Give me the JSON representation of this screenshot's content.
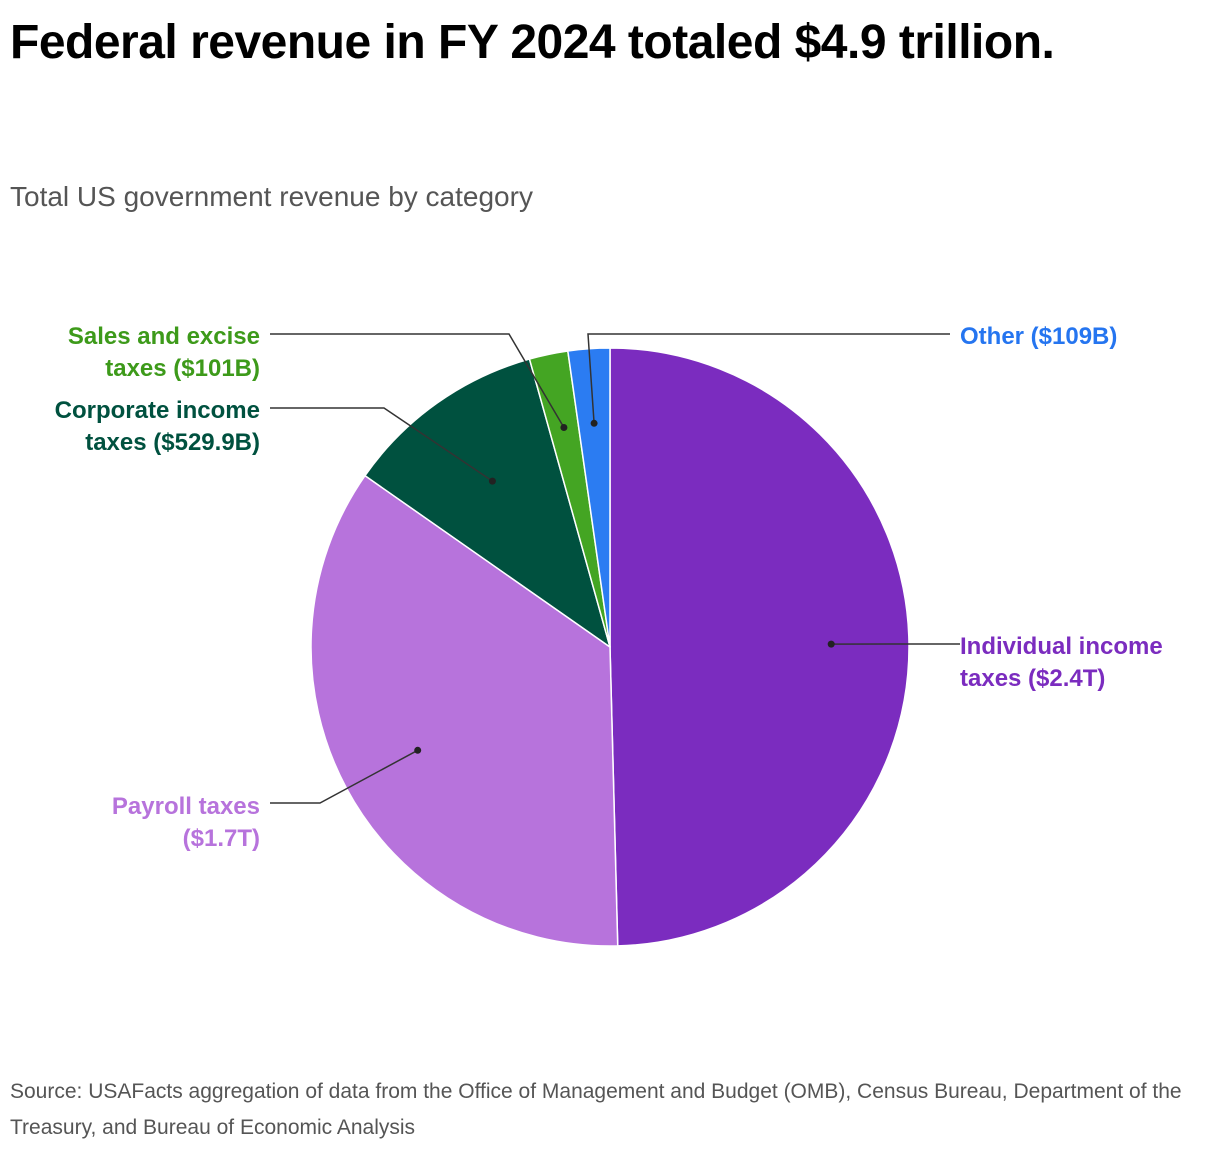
{
  "header": {
    "title": "Federal revenue in FY 2024 totaled $4.9 trillion.",
    "subtitle": "Total US government revenue by category"
  },
  "footer": {
    "source": "Source: USAFacts aggregation of data from the Office of Management and Budget (OMB), Census Bureau, Department of the Treasury, and Bureau of Economic Analysis"
  },
  "chart_data": {
    "type": "pie",
    "title": "Federal revenue in FY 2024 totaled $4.9 trillion.",
    "subtitle": "Total US government revenue by category",
    "unit": "USD",
    "start_angle": "12 o'clock",
    "direction": "clockwise",
    "legend": "none (direct labels with leader lines)",
    "slices": [
      {
        "label_lines": [
          "Individual income",
          "taxes ($2.4T)"
        ],
        "value": 2400,
        "value_label": "$2.4T",
        "color": "#7b2cbf"
      },
      {
        "label_lines": [
          "Payroll taxes",
          "($1.7T)"
        ],
        "value": 1700,
        "value_label": "$1.7T",
        "color": "#b773dc"
      },
      {
        "label_lines": [
          "Corporate income",
          "taxes ($529.9B)"
        ],
        "value": 529.9,
        "value_label": "$529.9B",
        "color": "#00513f"
      },
      {
        "label_lines": [
          "Sales and excise",
          "taxes ($101B)"
        ],
        "value": 101,
        "value_label": "$101B",
        "color": "#44a523"
      },
      {
        "label_lines": [
          "Other ($109B)"
        ],
        "value": 109,
        "value_label": "$109B",
        "color": "#2b7cf2"
      }
    ],
    "label_colors": [
      "#7b2cbf",
      "#b773dc",
      "#00513f",
      "#3d9a1a",
      "#2575f0"
    ]
  }
}
